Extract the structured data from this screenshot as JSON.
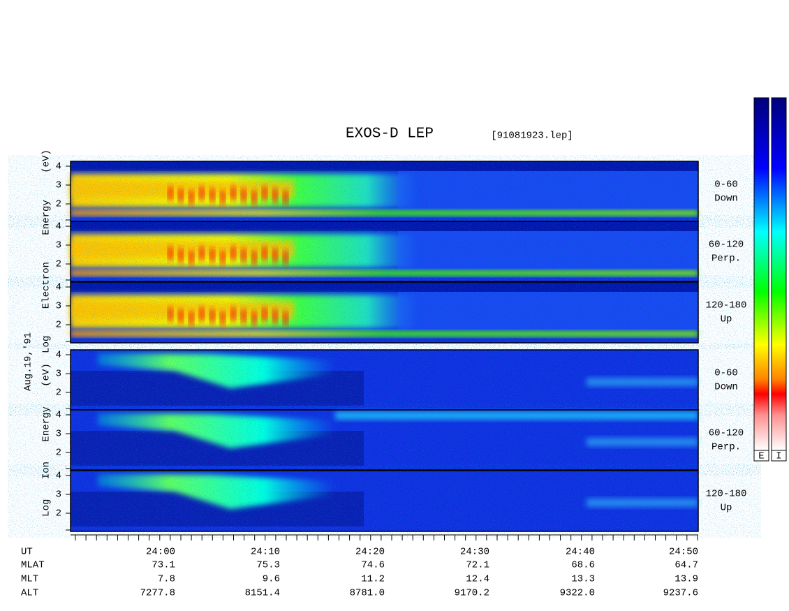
{
  "header": {
    "title": "EXOS-D LEP",
    "file": "[91081923.lep]"
  },
  "axes": {
    "electron_label": "Log Electron Energy (eV)",
    "ion_label": "Log Ion Energy (eV)",
    "date": "Aug.19,'91",
    "y_ticks": [
      "4",
      "3",
      "2"
    ]
  },
  "panels": [
    {
      "angle": "0-60",
      "direction": "Down"
    },
    {
      "angle": "60-120",
      "direction": "Perp."
    },
    {
      "angle": "120-180",
      "direction": "Up"
    },
    {
      "angle": "0-60",
      "direction": "Down"
    },
    {
      "angle": "60-120",
      "direction": "Perp."
    },
    {
      "angle": "120-180",
      "direction": "Up"
    }
  ],
  "colorbars": [
    "E",
    "I"
  ],
  "footer": {
    "labels": [
      "UT",
      "MLAT",
      "MLT",
      "ALT"
    ],
    "rows": [
      [
        "24:00",
        "24:10",
        "24:20",
        "24:30",
        "24:40",
        "24:50"
      ],
      [
        "73.1",
        "75.3",
        "74.6",
        "72.1",
        "68.6",
        "64.7"
      ],
      [
        "7.8",
        "9.6",
        "11.2",
        "12.4",
        "13.3",
        "13.9"
      ],
      [
        "7277.8",
        "8151.4",
        "8781.0",
        "9170.2",
        "9322.0",
        "9237.6"
      ]
    ]
  }
}
